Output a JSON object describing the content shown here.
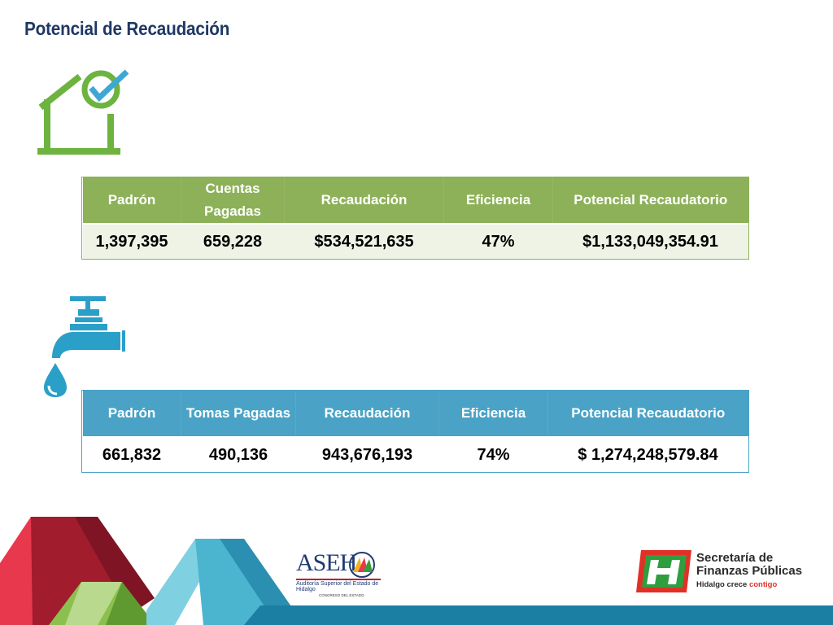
{
  "page": {
    "title": "Potencial de Recaudación"
  },
  "icons": {
    "house": "house-check-icon",
    "faucet": "water-faucet-icon"
  },
  "predial_table": {
    "headers": [
      "Padrón",
      "Cuentas Pagadas",
      "Recaudación",
      "Eficiencia",
      "Potencial Recaudatorio"
    ],
    "row": [
      "1,397,395",
      "659,228",
      "$534,521,635",
      "47%",
      "$1,133,049,354.91"
    ],
    "color": "#8db159"
  },
  "agua_table": {
    "headers": [
      "Padrón",
      "Tomas Pagadas",
      "Recaudación",
      "Eficiencia",
      "Potencial Recaudatorio"
    ],
    "row": [
      "661,832",
      "490,136",
      "943,676,193",
      "74%",
      "$ 1,274,248,579.84"
    ],
    "color": "#4aa3c6"
  },
  "logos": {
    "aseh": {
      "acronym": "ASEH",
      "name": "Auditoría Superior del Estado de Hidalgo",
      "tagline": "CONGRESO DEL ESTADO"
    },
    "sfp": {
      "name": "Secretaría de Finanzas Públicas",
      "slogan_main": "Hidalgo crece",
      "slogan_accent": "contigo"
    }
  }
}
